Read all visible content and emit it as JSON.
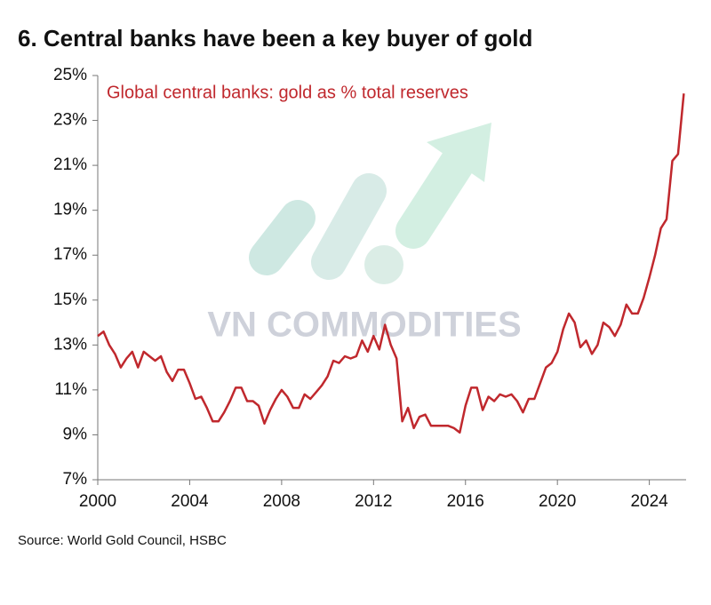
{
  "chart_data": {
    "type": "line",
    "title": "6. Central banks have been a key buyer of gold",
    "annotation": "Global central banks: gold as % total reserves",
    "source": "Source: World Gold Council, HSBC",
    "watermark": "VN COMMODITIES",
    "color": "#c0282d",
    "x": [
      2000,
      2000.25,
      2000.5,
      2000.75,
      2001,
      2001.25,
      2001.5,
      2001.75,
      2002,
      2002.25,
      2002.5,
      2002.75,
      2003,
      2003.25,
      2003.5,
      2003.75,
      2004,
      2004.25,
      2004.5,
      2004.75,
      2005,
      2005.25,
      2005.5,
      2005.75,
      2006,
      2006.25,
      2006.5,
      2006.75,
      2007,
      2007.25,
      2007.5,
      2007.75,
      2008,
      2008.25,
      2008.5,
      2008.75,
      2009,
      2009.25,
      2009.5,
      2009.75,
      2010,
      2010.25,
      2010.5,
      2010.75,
      2011,
      2011.25,
      2011.5,
      2011.75,
      2012,
      2012.25,
      2012.5,
      2012.75,
      2013,
      2013.25,
      2013.5,
      2013.75,
      2014,
      2014.25,
      2014.5,
      2014.75,
      2015,
      2015.25,
      2015.5,
      2015.75,
      2016,
      2016.25,
      2016.5,
      2016.75,
      2017,
      2017.25,
      2017.5,
      2017.75,
      2018,
      2018.25,
      2018.5,
      2018.75,
      2019,
      2019.25,
      2019.5,
      2019.75,
      2020,
      2020.25,
      2020.5,
      2020.75,
      2021,
      2021.25,
      2021.5,
      2021.75,
      2022,
      2022.25,
      2022.5,
      2022.75,
      2023,
      2023.25,
      2023.5,
      2023.75,
      2024,
      2024.25,
      2024.5,
      2024.75,
      2025,
      2025.25,
      2025.5
    ],
    "values": [
      13.4,
      13.6,
      13.0,
      12.6,
      12.0,
      12.4,
      12.7,
      12.0,
      12.7,
      12.5,
      12.3,
      12.5,
      11.8,
      11.4,
      11.9,
      11.9,
      11.3,
      10.6,
      10.7,
      10.2,
      9.6,
      9.6,
      10.0,
      10.5,
      11.1,
      11.1,
      10.5,
      10.5,
      10.3,
      9.5,
      10.1,
      10.6,
      11.0,
      10.7,
      10.2,
      10.2,
      10.8,
      10.6,
      10.9,
      11.2,
      11.6,
      12.3,
      12.2,
      12.5,
      12.4,
      12.5,
      13.2,
      12.7,
      13.4,
      12.8,
      13.9,
      13.0,
      12.4,
      9.6,
      10.2,
      9.3,
      9.8,
      9.9,
      9.4,
      9.4,
      9.4,
      9.4,
      9.3,
      9.1,
      10.3,
      11.1,
      11.1,
      10.1,
      10.7,
      10.5,
      10.8,
      10.7,
      10.8,
      10.5,
      10.0,
      10.6,
      10.6,
      11.3,
      12.0,
      12.2,
      12.7,
      13.7,
      14.4,
      14.0,
      12.9,
      13.2,
      12.6,
      13.0,
      14.0,
      13.8,
      13.4,
      13.9,
      14.8,
      14.4,
      14.4,
      15.1,
      16.0,
      17.0,
      18.2,
      18.6,
      21.2,
      21.5,
      24.2
    ],
    "xlim": [
      2000,
      2025.6
    ],
    "xticks": [
      2000,
      2004,
      2008,
      2012,
      2016,
      2020,
      2024
    ],
    "ylim": [
      7,
      25
    ],
    "yticks": [
      {
        "value": 7,
        "label": "7%"
      },
      {
        "value": 9,
        "label": "9%"
      },
      {
        "value": 11,
        "label": "11%"
      },
      {
        "value": 13,
        "label": "13%"
      },
      {
        "value": 15,
        "label": "15%"
      },
      {
        "value": 17,
        "label": "17%"
      },
      {
        "value": 19,
        "label": "19%"
      },
      {
        "value": 21,
        "label": "21%"
      },
      {
        "value": 23,
        "label": "23%"
      },
      {
        "value": 25,
        "label": "25%"
      }
    ]
  }
}
